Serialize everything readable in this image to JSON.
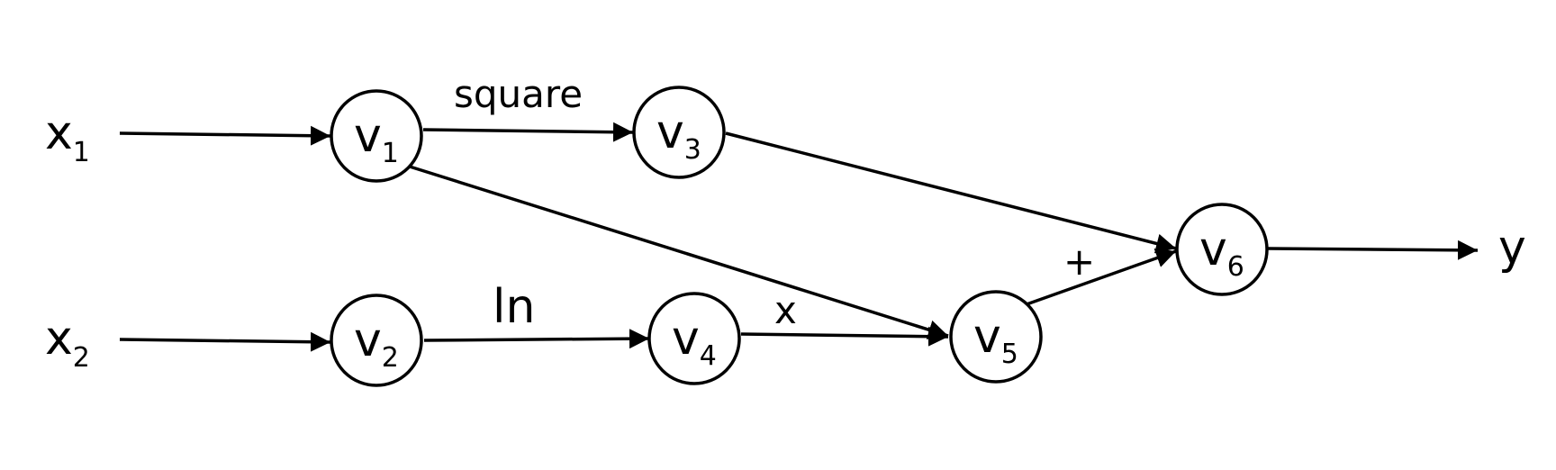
{
  "inputs": [
    {
      "name": "x",
      "sub": "1"
    },
    {
      "name": "x",
      "sub": "2"
    }
  ],
  "output": {
    "name": "y"
  },
  "nodes": [
    {
      "name": "v",
      "sub": "1"
    },
    {
      "name": "v",
      "sub": "2"
    },
    {
      "name": "v",
      "sub": "3"
    },
    {
      "name": "v",
      "sub": "4"
    },
    {
      "name": "v",
      "sub": "5"
    },
    {
      "name": "v",
      "sub": "6"
    }
  ],
  "edge_labels": {
    "square": "square",
    "ln": "ln",
    "times": "x",
    "plus": "+"
  }
}
